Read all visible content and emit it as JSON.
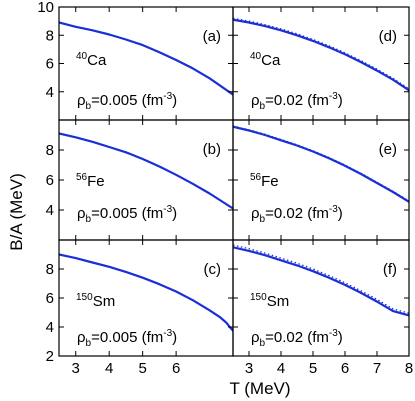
{
  "figure": {
    "ylabel": "B/A (MeV)",
    "xlabel": "T (MeV)",
    "curve_color": "#1a2fd6"
  },
  "chart_data": [
    {
      "type": "line",
      "panel": "(a)",
      "row": 0,
      "col": 0,
      "nucleus_mass": "40",
      "nucleus_symbol": "Ca",
      "density_label": "ρ",
      "density_sub": "b",
      "density_text": "=0.005 (fm",
      "density_exp": "-3",
      "density_close": ")",
      "xlim": [
        2.5,
        7.7
      ],
      "ylim": [
        2,
        10
      ],
      "xticks": [
        3,
        4,
        5,
        6
      ],
      "xticklabels": [],
      "yticks": [
        4,
        6,
        8,
        10
      ],
      "yticklabels": [
        "4",
        "6",
        "8",
        "10"
      ],
      "series": [
        {
          "style": "solid",
          "x": [
            2.5,
            3,
            3.5,
            4,
            4.5,
            5,
            5.5,
            6,
            6.5,
            7,
            7.7
          ],
          "y": [
            8.9,
            8.6,
            8.35,
            8.05,
            7.7,
            7.3,
            6.8,
            6.25,
            5.65,
            4.95,
            3.8
          ]
        }
      ]
    },
    {
      "type": "line",
      "panel": "(b)",
      "row": 1,
      "col": 0,
      "nucleus_mass": "56",
      "nucleus_symbol": "Fe",
      "density_label": "ρ",
      "density_sub": "b",
      "density_text": "=0.005 (fm",
      "density_exp": "-3",
      "density_close": ")",
      "xlim": [
        2.5,
        7.7
      ],
      "ylim": [
        2,
        10
      ],
      "xticks": [
        3,
        4,
        5,
        6
      ],
      "xticklabels": [],
      "yticks": [
        4,
        6,
        8
      ],
      "yticklabels": [
        "4",
        "6",
        "8"
      ],
      "series": [
        {
          "style": "solid",
          "x": [
            2.5,
            3,
            3.5,
            4,
            4.5,
            5,
            5.5,
            6,
            6.5,
            7,
            7.7
          ],
          "y": [
            9.1,
            8.85,
            8.55,
            8.2,
            7.85,
            7.4,
            6.9,
            6.35,
            5.75,
            5.1,
            4.1
          ]
        }
      ]
    },
    {
      "type": "line",
      "panel": "(c)",
      "row": 2,
      "col": 0,
      "nucleus_mass": "150",
      "nucleus_symbol": "Sm",
      "density_label": "ρ",
      "density_sub": "b",
      "density_text": "=0.005 (fm",
      "density_exp": "-3",
      "density_close": ")",
      "xlim": [
        2.5,
        7.7
      ],
      "ylim": [
        2,
        10
      ],
      "xticks": [
        3,
        4,
        5,
        6
      ],
      "xticklabels": [
        "3",
        "4",
        "5",
        "6"
      ],
      "yticks": [
        2,
        4,
        6,
        8
      ],
      "yticklabels": [
        "2",
        "4",
        "6",
        "8"
      ],
      "series": [
        {
          "style": "solid",
          "x": [
            2.5,
            3,
            3.5,
            4,
            4.5,
            5,
            5.5,
            6,
            6.5,
            7,
            7.3,
            7.5,
            7.6,
            7.7
          ],
          "y": [
            9.0,
            8.75,
            8.45,
            8.15,
            7.8,
            7.4,
            6.95,
            6.45,
            5.85,
            5.15,
            4.7,
            4.3,
            4.0,
            3.75
          ]
        }
      ]
    },
    {
      "type": "line",
      "panel": "(d)",
      "row": 0,
      "col": 1,
      "nucleus_mass": "40",
      "nucleus_symbol": "Ca",
      "density_label": "ρ",
      "density_sub": "b",
      "density_text": "=0.02 (fm",
      "density_exp": "-3",
      "density_close": ")",
      "xlim": [
        2.5,
        8
      ],
      "ylim": [
        2,
        10
      ],
      "xticks": [
        3,
        4,
        5,
        6,
        7,
        8
      ],
      "xticklabels": [],
      "yticks": [
        4,
        6,
        8
      ],
      "yticklabels": [],
      "series": [
        {
          "style": "solid",
          "x": [
            2.5,
            3,
            3.5,
            4,
            4.5,
            5,
            5.5,
            6,
            6.5,
            7,
            7.5,
            8
          ],
          "y": [
            9.1,
            8.9,
            8.65,
            8.35,
            8.0,
            7.6,
            7.15,
            6.65,
            6.1,
            5.5,
            4.85,
            4.1
          ]
        },
        {
          "style": "dotted",
          "x": [
            2.5,
            3,
            3.5,
            4,
            4.5,
            5,
            5.5,
            6,
            6.5,
            7,
            7.5,
            8
          ],
          "y": [
            9.2,
            9.0,
            8.75,
            8.45,
            8.1,
            7.7,
            7.25,
            6.75,
            6.2,
            5.6,
            4.95,
            4.2
          ]
        }
      ]
    },
    {
      "type": "line",
      "panel": "(e)",
      "row": 1,
      "col": 1,
      "nucleus_mass": "56",
      "nucleus_symbol": "Fe",
      "density_label": "ρ",
      "density_sub": "b",
      "density_text": "=0.02 (fm",
      "density_exp": "-3",
      "density_close": ")",
      "xlim": [
        2.5,
        8
      ],
      "ylim": [
        2,
        10
      ],
      "xticks": [
        3,
        4,
        5,
        6,
        7,
        8
      ],
      "xticklabels": [],
      "yticks": [
        4,
        6,
        8
      ],
      "yticklabels": [],
      "series": [
        {
          "style": "solid",
          "x": [
            2.5,
            3,
            3.5,
            4,
            4.5,
            5,
            5.5,
            6,
            6.5,
            7,
            7.5,
            8
          ],
          "y": [
            9.55,
            9.3,
            9.0,
            8.65,
            8.3,
            7.9,
            7.45,
            6.95,
            6.4,
            5.8,
            5.2,
            4.55
          ]
        },
        {
          "style": "dotted",
          "x": [
            2.5,
            3,
            3.5,
            4,
            4.5,
            5,
            5.5,
            6,
            6.5,
            7,
            7.5,
            8
          ],
          "y": [
            9.6,
            9.35,
            9.05,
            8.7,
            8.35,
            7.95,
            7.5,
            7.0,
            6.45,
            5.85,
            5.25,
            4.6
          ]
        }
      ]
    },
    {
      "type": "line",
      "panel": "(f)",
      "row": 2,
      "col": 1,
      "nucleus_mass": "150",
      "nucleus_symbol": "Sm",
      "density_label": "ρ",
      "density_sub": "b",
      "density_text": "=0.02 (fm",
      "density_exp": "-3",
      "density_close": ")",
      "xlim": [
        2.5,
        8
      ],
      "ylim": [
        2,
        10
      ],
      "xticks": [
        3,
        4,
        5,
        6,
        7,
        8
      ],
      "xticklabels": [
        "3",
        "4",
        "5",
        "6",
        "7",
        "8"
      ],
      "yticks": [
        2,
        4,
        6,
        8
      ],
      "yticklabels": [],
      "series": [
        {
          "style": "solid",
          "x": [
            2.5,
            3,
            3.5,
            4,
            4.5,
            5,
            5.5,
            6,
            6.5,
            7,
            7.5,
            8
          ],
          "y": [
            9.5,
            9.25,
            8.95,
            8.6,
            8.25,
            7.85,
            7.4,
            6.9,
            6.35,
            5.75,
            5.1,
            4.8
          ]
        },
        {
          "style": "dotted",
          "x": [
            2.5,
            3,
            3.5,
            4,
            4.5,
            5,
            5.5,
            6,
            6.5,
            7,
            7.5,
            8
          ],
          "y": [
            9.65,
            9.4,
            9.1,
            8.75,
            8.4,
            8.0,
            7.55,
            7.05,
            6.5,
            5.9,
            5.25,
            4.95
          ]
        }
      ]
    }
  ]
}
